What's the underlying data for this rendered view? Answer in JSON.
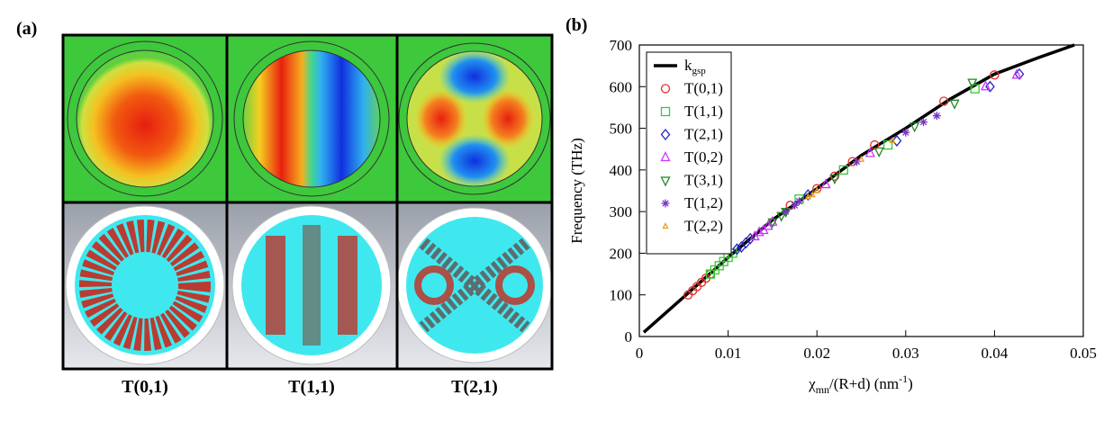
{
  "panel_a": {
    "label": "(a)",
    "captions": [
      "T(0,1)",
      "T(1,1)",
      "T(2,1)"
    ]
  },
  "chart_data": {
    "type": "scatter",
    "panel_label": "(b)",
    "x_label": {
      "base": "χ",
      "sub": "mn",
      "mid": "/(R+d) (nm",
      "sup": "-1",
      "end": ")"
    },
    "y_label": "Frequency (THz)",
    "xlim": [
      0,
      0.05
    ],
    "xticks": [
      0,
      0.01,
      0.02,
      0.03,
      0.04,
      0.05
    ],
    "ylim": [
      0,
      700
    ],
    "yticks": [
      0,
      100,
      200,
      300,
      400,
      500,
      600,
      700
    ],
    "legend": "upper-left",
    "series": [
      {
        "name": "k",
        "name_sub": "gsp",
        "marker": "line",
        "color": "#000000",
        "x": [
          0.0005,
          0.005,
          0.01,
          0.015,
          0.02,
          0.025,
          0.03,
          0.035,
          0.04,
          0.045,
          0.049
        ],
        "values": [
          10,
          95,
          190,
          280,
          355,
          435,
          500,
          570,
          630,
          670,
          700
        ]
      },
      {
        "name": "T(0,1)",
        "marker": "circle",
        "color": "#e0302a",
        "x": [
          0.0055,
          0.006,
          0.0065,
          0.007,
          0.0075,
          0.008,
          0.017,
          0.02,
          0.022,
          0.024,
          0.0265,
          0.0343,
          0.04
        ],
        "values": [
          100,
          110,
          120,
          130,
          140,
          150,
          315,
          355,
          385,
          420,
          460,
          565,
          628
        ]
      },
      {
        "name": "T(1,1)",
        "marker": "square",
        "color": "#33cc33",
        "x": [
          0.008,
          0.0085,
          0.009,
          0.0095,
          0.01,
          0.0105,
          0.018,
          0.023,
          0.028,
          0.0378
        ],
        "values": [
          150,
          160,
          170,
          180,
          190,
          200,
          330,
          400,
          460,
          595
        ]
      },
      {
        "name": "T(2,1)",
        "marker": "diamond",
        "color": "#2323c8",
        "x": [
          0.011,
          0.0115,
          0.012,
          0.0125,
          0.019,
          0.029,
          0.0395,
          0.0428
        ],
        "values": [
          210,
          215,
          225,
          235,
          340,
          470,
          600,
          630
        ]
      },
      {
        "name": "T(0,2)",
        "marker": "triangle-up",
        "color": "#cc33ff",
        "x": [
          0.013,
          0.0135,
          0.014,
          0.0145,
          0.015,
          0.021,
          0.026,
          0.039,
          0.0425
        ],
        "values": [
          240,
          250,
          255,
          265,
          275,
          365,
          440,
          600,
          628
        ]
      },
      {
        "name": "T(3,1)",
        "marker": "triangle-down",
        "color": "#228822",
        "x": [
          0.015,
          0.016,
          0.0165,
          0.022,
          0.027,
          0.031,
          0.0355,
          0.0375
        ],
        "values": [
          275,
          290,
          300,
          380,
          445,
          505,
          560,
          610
        ]
      },
      {
        "name": "T(1,2)",
        "marker": "asterisk",
        "color": "#7733cc",
        "x": [
          0.0165,
          0.0175,
          0.018,
          0.0245,
          0.03,
          0.032,
          0.0335
        ],
        "values": [
          300,
          315,
          325,
          420,
          490,
          515,
          530
        ]
      },
      {
        "name": "T(2,2)",
        "marker": "triangle-small",
        "color": "#e8a020",
        "x": [
          0.019,
          0.0195,
          0.02,
          0.025,
          0.0285
        ],
        "values": [
          335,
          340,
          350,
          425,
          470
        ]
      }
    ]
  }
}
